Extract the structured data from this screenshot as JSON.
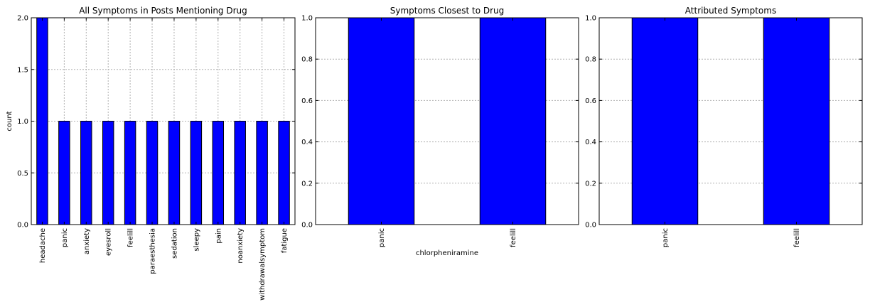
{
  "colors": {
    "bar": "#0000ff",
    "grid": "#b0b0b0",
    "axis": "#000000",
    "background": "#ffffff"
  },
  "chart_data": [
    {
      "type": "bar",
      "title": "All Symptoms in Posts Mentioning Drug",
      "xlabel": "",
      "ylabel": "count",
      "categories": [
        "headache",
        "panic",
        "anxiety",
        "eyesroll",
        "feelill",
        "paraesthesia",
        "sedation",
        "sleepy",
        "pain",
        "noanxiety",
        "withdrawalsymptom",
        "fatigue"
      ],
      "values": [
        2,
        1,
        1,
        1,
        1,
        1,
        1,
        1,
        1,
        1,
        1,
        1
      ],
      "ylim": [
        0,
        2.0
      ],
      "yticks": [
        "0.0",
        "0.5",
        "1.0",
        "1.5",
        "2.0"
      ],
      "grid": true
    },
    {
      "type": "bar",
      "title": "Symptoms Closest to Drug",
      "xlabel": "chlorpheniramine",
      "ylabel": "",
      "categories": [
        "panic",
        "feelill"
      ],
      "values": [
        1,
        1
      ],
      "ylim": [
        0,
        1.0
      ],
      "yticks": [
        "0.0",
        "0.2",
        "0.4",
        "0.6",
        "0.8",
        "1.0"
      ],
      "grid": true
    },
    {
      "type": "bar",
      "title": "Attributed Symptoms",
      "xlabel": "",
      "ylabel": "",
      "categories": [
        "panic",
        "feelill"
      ],
      "values": [
        1,
        1
      ],
      "ylim": [
        0,
        1.0
      ],
      "yticks": [
        "0.0",
        "0.2",
        "0.4",
        "0.6",
        "0.8",
        "1.0"
      ],
      "grid": true
    }
  ]
}
